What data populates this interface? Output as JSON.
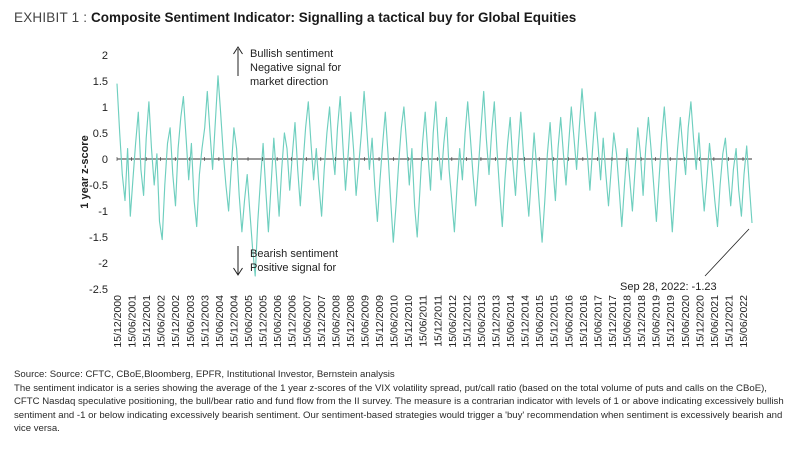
{
  "exhibit": {
    "label": "EXHIBIT 1 :",
    "title": "Composite Sentiment Indicator: Signalling a tactical buy for Global Equities"
  },
  "chart_data": {
    "type": "line",
    "title": "Composite Sentiment Indicator: Signalling a tactical buy for Global Equities",
    "xlabel": "",
    "ylabel": "1 year z-score",
    "ylim": [
      -2.5,
      2
    ],
    "yticks": [
      "2",
      "1.5",
      "1",
      "0.5",
      "0",
      "-0.5",
      "-1",
      "-1.5",
      "-2",
      "-2.5"
    ],
    "ytick_values": [
      2,
      1.5,
      1,
      0.5,
      0,
      -0.5,
      -1,
      -1.5,
      -2,
      -2.5
    ],
    "line_color": "#6fcfbf",
    "x_tick_labels": [
      "15/12/2000",
      "15/06/2001",
      "15/12/2001",
      "15/06/2002",
      "15/12/2002",
      "15/06/2003",
      "15/12/2003",
      "15/06/2004",
      "15/12/2004",
      "15/06/2005",
      "15/12/2005",
      "15/06/2006",
      "15/12/2006",
      "15/06/2007",
      "15/12/2007",
      "15/06/2008",
      "15/12/2008",
      "15/06/2009",
      "15/12/2009",
      "15/06/2010",
      "15/12/2010",
      "15/06/2011",
      "15/12/2011",
      "15/06/2012",
      "15/12/2012",
      "15/06/2013",
      "15/12/2013",
      "15/06/2014",
      "15/12/2014",
      "15/06/2015",
      "15/12/2015",
      "15/06/2016",
      "15/12/2016",
      "15/06/2017",
      "15/12/2017",
      "15/06/2018",
      "15/12/2018",
      "15/06/2019",
      "15/12/2019",
      "15/06/2020",
      "15/12/2020",
      "15/06/2021",
      "15/12/2021",
      "15/06/2022"
    ],
    "series": [
      {
        "name": "Composite Sentiment Indicator",
        "start_year": 2000.96,
        "end_year": 2022.74,
        "values": [
          1.45,
          0.5,
          -0.3,
          -0.8,
          0.2,
          -1.1,
          -0.4,
          0.3,
          0.9,
          -0.2,
          -0.7,
          0.4,
          1.1,
          0.2,
          -0.5,
          0.1,
          -1.2,
          -1.55,
          -0.5,
          0.3,
          0.6,
          -0.3,
          -0.9,
          0.2,
          0.8,
          1.2,
          0.4,
          -0.4,
          0.3,
          -0.8,
          -1.3,
          -0.3,
          0.2,
          0.6,
          1.3,
          0.5,
          -0.2,
          0.7,
          1.6,
          0.9,
          0.1,
          -0.5,
          -1.0,
          -0.2,
          0.6,
          0.2,
          -0.7,
          -1.4,
          -0.8,
          -0.3,
          -1.0,
          -1.7,
          -2.25,
          -1.2,
          -0.4,
          0.3,
          -0.6,
          -1.4,
          -0.5,
          0.4,
          -0.3,
          -1.1,
          -0.2,
          0.5,
          0.2,
          -0.6,
          0.1,
          0.7,
          -0.2,
          -0.9,
          -0.1,
          0.6,
          1.1,
          0.3,
          -0.4,
          0.2,
          -0.5,
          -1.1,
          -0.2,
          0.5,
          1.0,
          0.2,
          -0.3,
          0.6,
          1.2,
          0.3,
          -0.6,
          0.1,
          0.9,
          0.2,
          -0.7,
          -0.1,
          0.5,
          1.3,
          0.6,
          -0.2,
          0.4,
          -0.5,
          -1.2,
          -0.4,
          0.3,
          0.9,
          0.1,
          -0.8,
          -1.6,
          -0.9,
          -0.1,
          0.6,
          1.0,
          0.3,
          -0.5,
          0.2,
          -0.9,
          -1.5,
          -0.6,
          0.3,
          0.9,
          0.1,
          -0.6,
          0.5,
          1.1,
          0.2,
          -0.4,
          0.3,
          0.8,
          -0.2,
          -0.8,
          -1.4,
          -0.5,
          0.2,
          -0.4,
          0.5,
          1.1,
          0.4,
          -0.3,
          -0.9,
          -0.2,
          0.6,
          1.3,
          0.4,
          -0.3,
          0.5,
          1.1,
          0.2,
          -0.6,
          -1.3,
          -0.4,
          0.3,
          0.8,
          -0.1,
          -0.7,
          0.2,
          0.9,
          0.1,
          -0.5,
          -1.1,
          -0.3,
          0.5,
          -0.2,
          -0.9,
          -1.6,
          -0.8,
          0.1,
          0.7,
          -0.1,
          -0.8,
          0.2,
          0.8,
          0.1,
          -0.5,
          0.3,
          1.0,
          0.4,
          -0.2,
          0.6,
          1.35,
          0.7,
          0.1,
          -0.6,
          0.2,
          0.9,
          0.3,
          -0.4,
          0.4,
          -0.3,
          -0.9,
          -0.2,
          0.5,
          0.1,
          -0.6,
          -1.3,
          -0.5,
          0.2,
          -0.4,
          -1.0,
          -0.2,
          0.6,
          0.1,
          -0.7,
          0.2,
          0.8,
          0.2,
          -0.5,
          -1.2,
          -0.4,
          0.4,
          1.0,
          0.3,
          -0.6,
          -1.4,
          -0.6,
          0.2,
          0.8,
          0.2,
          -0.3,
          0.6,
          1.1,
          0.4,
          -0.2,
          0.5,
          -0.3,
          -1.0,
          -0.4,
          0.3,
          -0.2,
          -0.8,
          -1.3,
          -0.5,
          0.1,
          0.4,
          -0.3,
          -0.9,
          -0.2,
          0.2,
          -0.6,
          -1.1,
          -0.3,
          0.25,
          -0.5,
          -1.23
        ]
      }
    ],
    "annotations": {
      "bullish_line1": "Bullish sentiment",
      "bullish_line2": "Negative signal for",
      "bullish_line3": "market direction",
      "bearish_line1": "Bearish sentiment",
      "bearish_line2": "Positive signal for",
      "callout": "Sep 28, 2022: -1.23"
    }
  },
  "source": {
    "line": "Source: Source: CFTC, CBoE,Bloomberg, EPFR, Institutional Investor, Bernstein analysis",
    "description": "The sentiment indicator is a series showing the average of the 1 year z-scores of the VIX volatility spread, put/call ratio (based on the total volume of puts and calls on the CBoE), CFTC Nasdaq speculative positioning, the bull/bear ratio and fund flow from the II survey. The measure is a contrarian indicator with levels of 1 or above indicating excessively bullish sentiment and -1 or below indicating excessively bearish sentiment. Our sentiment-based strategies would trigger a 'buy' recommendation when sentiment is excessively bearish and vice versa."
  }
}
